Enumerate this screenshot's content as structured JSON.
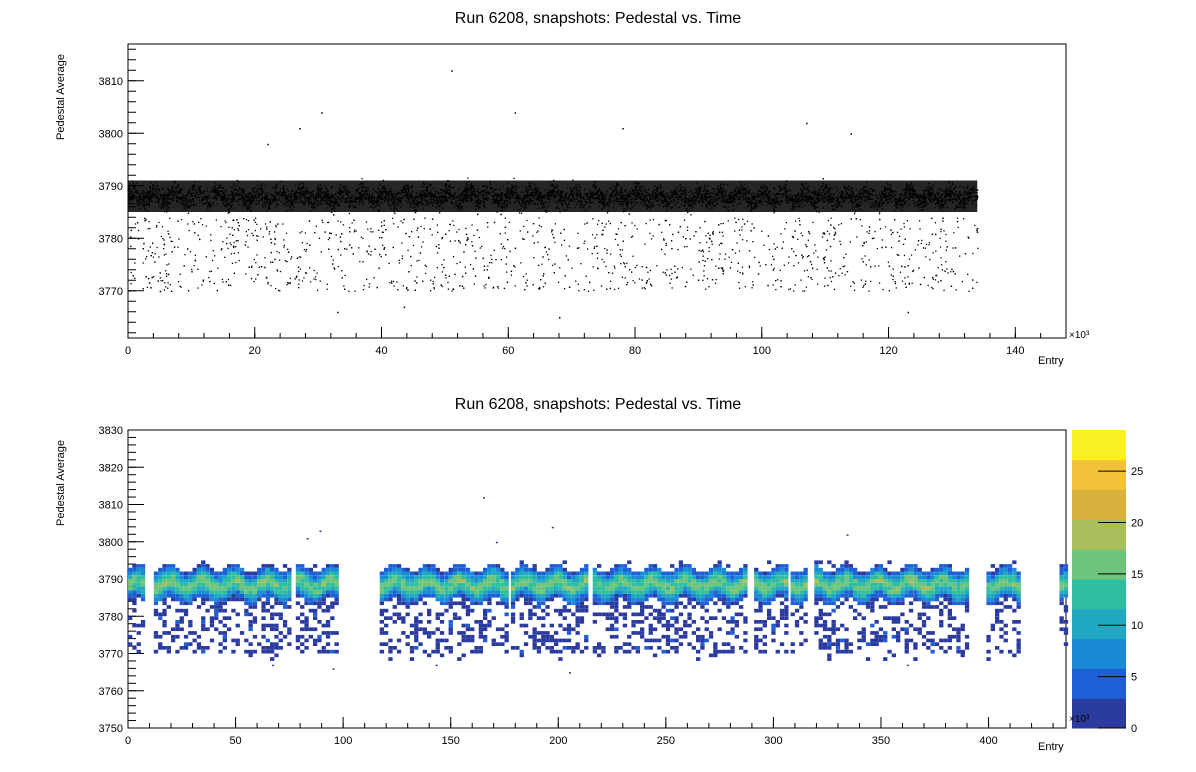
{
  "chart_data": [
    {
      "type": "scatter",
      "title": "Run 6208, snapshots: Pedestal vs. Time",
      "xlabel": "Entry",
      "ylabel": "Pedestal Average",
      "x_multiplier": "×10³",
      "xlim": [
        0,
        148
      ],
      "ylim": [
        3761,
        3817
      ],
      "xticks": [
        0,
        20,
        40,
        60,
        80,
        100,
        120,
        140
      ],
      "yticks": [
        3770,
        3780,
        3790,
        3800,
        3810
      ],
      "data_extent_x": [
        0,
        134
      ],
      "band": {
        "center": 3788,
        "low": 3784,
        "high": 3792
      },
      "tail_range": [
        3770,
        3784
      ],
      "outliers": [
        {
          "x": 51,
          "y": 3812
        },
        {
          "x": 30.5,
          "y": 3804
        },
        {
          "x": 61,
          "y": 3804
        },
        {
          "x": 27,
          "y": 3801
        },
        {
          "x": 107,
          "y": 3802
        },
        {
          "x": 114,
          "y": 3800
        },
        {
          "x": 78,
          "y": 3801
        },
        {
          "x": 22,
          "y": 3798
        },
        {
          "x": 43.5,
          "y": 3767
        },
        {
          "x": 33,
          "y": 3766
        },
        {
          "x": 68,
          "y": 3765
        },
        {
          "x": 123,
          "y": 3766
        },
        {
          "x": 5,
          "y": 3770
        }
      ]
    },
    {
      "type": "heatmap",
      "title": "Run 6208, snapshots: Pedestal vs. Time",
      "xlabel": "Entry",
      "ylabel": "Pedestal Average",
      "x_multiplier": "×10³",
      "xlim": [
        0,
        436
      ],
      "ylim": [
        3750,
        3830
      ],
      "xticks": [
        0,
        50,
        100,
        150,
        200,
        250,
        300,
        350,
        400
      ],
      "yticks": [
        3750,
        3760,
        3770,
        3780,
        3790,
        3800,
        3810,
        3820,
        3830
      ],
      "zlim": [
        0,
        29
      ],
      "zticks": [
        0,
        5,
        10,
        15,
        20,
        25
      ],
      "colormap": [
        "#2a3a9e",
        "#1f5fd6",
        "#1b8ad6",
        "#20a9c0",
        "#2fbfa0",
        "#6fc47d",
        "#a8bf5c",
        "#d9b23e",
        "#f2c13a",
        "#f8f020"
      ],
      "band": {
        "center": 3788,
        "low": 3783,
        "high": 3792
      },
      "segments": [
        [
          0,
          8
        ],
        [
          12,
          75
        ],
        [
          78,
          98
        ],
        [
          117,
          176
        ],
        [
          178,
          183
        ],
        [
          184,
          213
        ],
        [
          216,
          287
        ],
        [
          291,
          298
        ],
        [
          299,
          306
        ],
        [
          308,
          316
        ],
        [
          319,
          391
        ],
        [
          399,
          414
        ],
        [
          433,
          436
        ]
      ],
      "outliers": [
        {
          "x": 165,
          "y": 3812
        },
        {
          "x": 197,
          "y": 3804
        },
        {
          "x": 89,
          "y": 3803
        },
        {
          "x": 171,
          "y": 3800
        },
        {
          "x": 83,
          "y": 3801
        },
        {
          "x": 334,
          "y": 3802
        },
        {
          "x": 67,
          "y": 3767
        },
        {
          "x": 143,
          "y": 3767
        },
        {
          "x": 205,
          "y": 3765
        },
        {
          "x": 95,
          "y": 3766
        },
        {
          "x": 362,
          "y": 3767
        }
      ]
    }
  ]
}
